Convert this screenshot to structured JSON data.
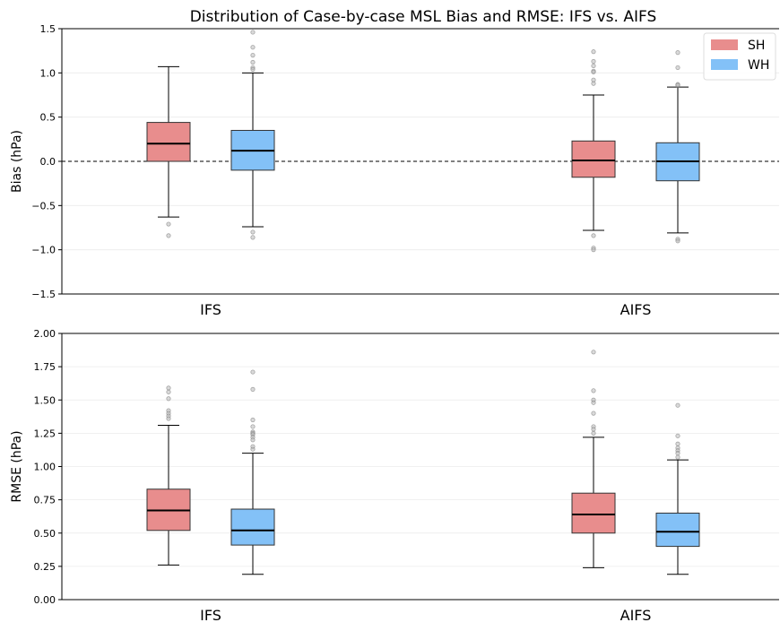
{
  "title": "Distribution of Case-by-case MSL Bias and RMSE: IFS vs. AIFS",
  "legend": {
    "placement": "top-right",
    "entries": [
      {
        "label": "SH",
        "color": "#e88d8d"
      },
      {
        "label": "WH",
        "color": "#83c1f7"
      }
    ]
  },
  "chart_data": [
    {
      "type": "box",
      "ylabel": "Bias (hPa)",
      "categories": [
        "IFS",
        "AIFS"
      ],
      "ylim": [
        -1.5,
        1.5
      ],
      "yticks": [
        -1.5,
        -1.0,
        -0.5,
        0.0,
        0.5,
        1.0,
        1.5
      ],
      "ytick_labels": [
        "−1.5",
        "−1.0",
        "−0.5",
        "0.0",
        "0.5",
        "1.0",
        "1.5"
      ],
      "grid": "horizontal",
      "reference_line": 0.0,
      "series": [
        {
          "name": "SH",
          "boxes": [
            {
              "category": "IFS",
              "whisker_low": -0.63,
              "q1": 0.0,
              "median": 0.2,
              "q3": 0.44,
              "whisker_high": 1.07,
              "outliers": [
                -0.71,
                -0.84
              ]
            },
            {
              "category": "AIFS",
              "whisker_low": -0.78,
              "q1": -0.18,
              "median": 0.01,
              "q3": 0.23,
              "whisker_high": 0.75,
              "outliers": [
                1.24,
                1.13,
                1.08,
                1.02,
                1.01,
                0.92,
                0.88,
                -0.84,
                -0.98,
                -1.0
              ]
            }
          ]
        },
        {
          "name": "WH",
          "boxes": [
            {
              "category": "IFS",
              "whisker_low": -0.74,
              "q1": -0.1,
              "median": 0.12,
              "q3": 0.35,
              "whisker_high": 1.0,
              "outliers": [
                1.46,
                1.29,
                1.2,
                1.12,
                1.06,
                1.04,
                -0.8,
                -0.86
              ]
            },
            {
              "category": "AIFS",
              "whisker_low": -0.81,
              "q1": -0.22,
              "median": 0.0,
              "q3": 0.21,
              "whisker_high": 0.84,
              "outliers": [
                1.23,
                1.06,
                0.87,
                0.86,
                -0.88,
                -0.9
              ]
            }
          ]
        }
      ]
    },
    {
      "type": "box",
      "ylabel": "RMSE (hPa)",
      "categories": [
        "IFS",
        "AIFS"
      ],
      "ylim": [
        0.0,
        2.0
      ],
      "yticks": [
        0.0,
        0.25,
        0.5,
        0.75,
        1.0,
        1.25,
        1.5,
        1.75,
        2.0
      ],
      "ytick_labels": [
        "0.00",
        "0.25",
        "0.50",
        "0.75",
        "1.00",
        "1.25",
        "1.50",
        "1.75",
        "2.00"
      ],
      "grid": "horizontal",
      "series": [
        {
          "name": "SH",
          "boxes": [
            {
              "category": "IFS",
              "whisker_low": 0.26,
              "q1": 0.52,
              "median": 0.67,
              "q3": 0.83,
              "whisker_high": 1.31,
              "outliers": [
                1.59,
                1.56,
                1.51,
                1.42,
                1.4,
                1.38,
                1.36
              ]
            },
            {
              "category": "AIFS",
              "whisker_low": 0.24,
              "q1": 0.5,
              "median": 0.64,
              "q3": 0.8,
              "whisker_high": 1.22,
              "outliers": [
                1.86,
                1.57,
                1.5,
                1.48,
                1.4,
                1.3,
                1.28,
                1.25
              ]
            }
          ]
        },
        {
          "name": "WH",
          "boxes": [
            {
              "category": "IFS",
              "whisker_low": 0.19,
              "q1": 0.41,
              "median": 0.52,
              "q3": 0.68,
              "whisker_high": 1.1,
              "outliers": [
                1.71,
                1.58,
                1.35,
                1.3,
                1.26,
                1.25,
                1.24,
                1.22,
                1.2,
                1.15,
                1.13
              ]
            },
            {
              "category": "AIFS",
              "whisker_low": 0.19,
              "q1": 0.4,
              "median": 0.51,
              "q3": 0.65,
              "whisker_high": 1.05,
              "outliers": [
                1.46,
                1.23,
                1.17,
                1.14,
                1.12,
                1.1,
                1.07
              ]
            }
          ]
        }
      ]
    }
  ]
}
